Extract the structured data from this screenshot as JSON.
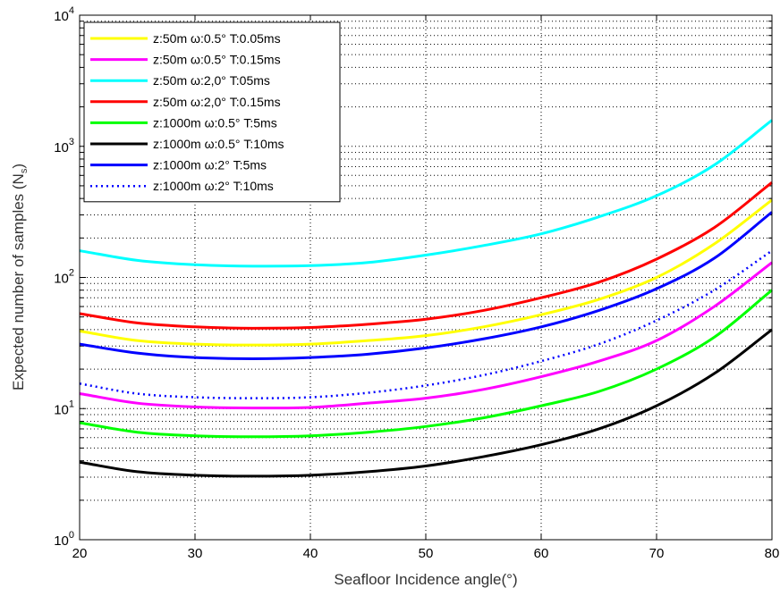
{
  "chart_data": {
    "type": "line",
    "title": "",
    "xlabel": "Seafloor Incidence angle(°)",
    "ylabel": "Expected number of samples (N",
    "ylabel_sub": "s",
    "ylabel_end": ")",
    "xscale": "linear",
    "yscale": "log",
    "xlim": [
      20,
      80
    ],
    "ylim": [
      1,
      10000
    ],
    "grid": true,
    "legend_position": "top-left",
    "x_ticks": [
      "20",
      "30",
      "40",
      "50",
      "60",
      "70",
      "80"
    ],
    "y_ticks": [
      {
        "value": 1,
        "base": "10",
        "exp": "0"
      },
      {
        "value": 10,
        "base": "10",
        "exp": "1"
      },
      {
        "value": 100,
        "base": "10",
        "exp": "2"
      },
      {
        "value": 1000,
        "base": "10",
        "exp": "3"
      },
      {
        "value": 10000,
        "base": "10",
        "exp": "4"
      }
    ],
    "x": [
      20,
      25,
      30,
      35,
      40,
      45,
      50,
      55,
      60,
      65,
      70,
      75,
      80
    ],
    "series": [
      {
        "name": "z:50m  ω:0.5°  T:0.05ms",
        "color": "#ffff00",
        "style": "solid",
        "values": [
          39,
          33,
          31,
          30.5,
          31,
          33,
          36,
          42,
          52,
          68,
          100,
          180,
          390
        ]
      },
      {
        "name": "z:50m  ω:0.5°  T:0.15ms",
        "color": "#ff00ff",
        "style": "solid",
        "values": [
          13,
          11,
          10.3,
          10.1,
          10.2,
          11,
          12,
          14,
          17.5,
          23,
          33,
          60,
          130
        ]
      },
      {
        "name": "z:50m  ω:2,0°  T:05ms",
        "color": "#00ffff",
        "style": "solid",
        "values": [
          160,
          135,
          125,
          122,
          123,
          130,
          148,
          175,
          215,
          290,
          420,
          720,
          1580
        ]
      },
      {
        "name": "z:50m  ω:2,0°  T:0.15ms",
        "color": "#ff0000",
        "style": "solid",
        "values": [
          53,
          45,
          42,
          41,
          41.5,
          44,
          48,
          56,
          70,
          92,
          138,
          240,
          530
        ]
      },
      {
        "name": "z:1000m  ω:0.5°  T:5ms",
        "color": "#00ff00",
        "style": "solid",
        "values": [
          7.8,
          6.6,
          6.2,
          6.1,
          6.2,
          6.6,
          7.3,
          8.5,
          10.5,
          13.5,
          20,
          35,
          80
        ]
      },
      {
        "name": "z:1000m  ω:0.5°  T:10ms",
        "color": "#000000",
        "style": "solid",
        "values": [
          3.9,
          3.3,
          3.1,
          3.05,
          3.1,
          3.3,
          3.65,
          4.3,
          5.3,
          7,
          10.5,
          18.5,
          40
        ]
      },
      {
        "name": "z:1000m  ω:2°  T:5ms",
        "color": "#0000ff",
        "style": "solid",
        "values": [
          31,
          26.5,
          24.5,
          24,
          24.5,
          26,
          29,
          34,
          42,
          56,
          82,
          140,
          315
        ]
      },
      {
        "name": "z:1000m  ω:2°  T:10ms",
        "color": "#0000ff",
        "style": "dotted",
        "values": [
          15.5,
          13,
          12.2,
          12,
          12.2,
          13.2,
          15,
          18,
          23,
          31,
          47,
          80,
          160
        ]
      }
    ]
  }
}
